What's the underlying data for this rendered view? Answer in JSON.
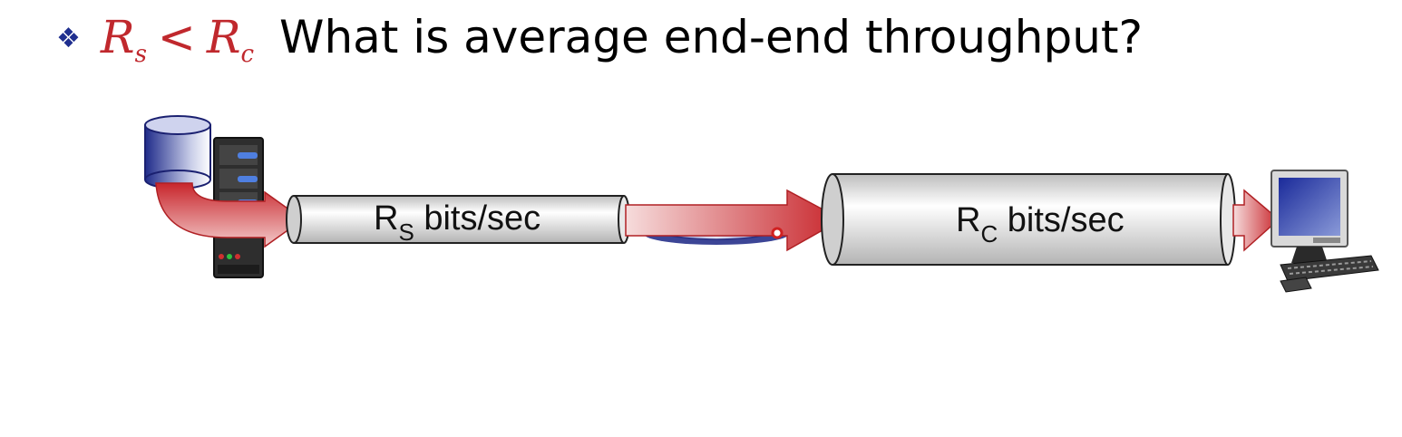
{
  "heading": {
    "bullet_icon": "diamond-bullet-icon",
    "rate_s_symbol": "R",
    "rate_s_subscript": "s",
    "comparator": "<",
    "rate_c_symbol": "R",
    "rate_c_subscript": "c",
    "question": "What is average end-end throughput?"
  },
  "links": [
    {
      "symbol": "R",
      "subscript": "S",
      "unit": "bits/sec"
    },
    {
      "symbol": "R",
      "subscript": "C",
      "unit": "bits/sec"
    }
  ],
  "colors": {
    "accent_red": "#c0282d",
    "bullet_blue": "#1f2f8f",
    "pipe_gray": "#d6d6d6"
  },
  "icons": [
    "database-icon",
    "server-icon",
    "router-icon",
    "computer-icon",
    "flow-arrow-icon"
  ]
}
